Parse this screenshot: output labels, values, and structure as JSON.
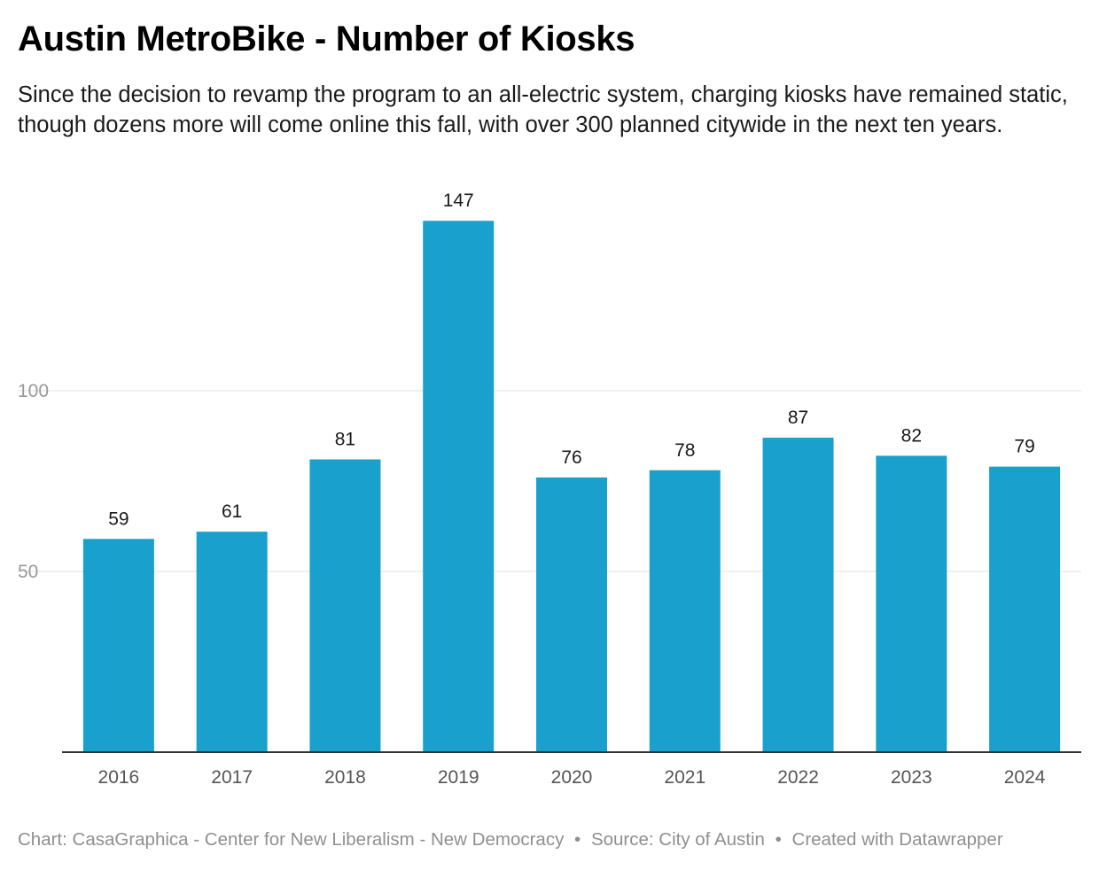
{
  "chart_data": {
    "type": "bar",
    "title": "Austin MetroBike - Number of Kiosks",
    "subtitle": "Since the decision to revamp the program to an all-electric system, charging kiosks have remained static, though dozens more will come online this fall, with over 300 planned citywide in the next ten years.",
    "categories": [
      "2016",
      "2017",
      "2018",
      "2019",
      "2020",
      "2021",
      "2022",
      "2023",
      "2024"
    ],
    "values": [
      59,
      61,
      81,
      147,
      76,
      78,
      87,
      82,
      79
    ],
    "data_labels": [
      "59",
      "61",
      "81",
      "147",
      "76",
      "78",
      "87",
      "82",
      "79"
    ],
    "xlabel": "",
    "ylabel": "",
    "ylim": [
      0,
      150
    ],
    "yticks": [
      50,
      100
    ],
    "ytick_labels": [
      "50",
      "100"
    ],
    "grid": true,
    "legend": "none",
    "bar_color": "#1aa0cc"
  },
  "footer": {
    "chart_credit": "Chart: CasaGraphica - Center for New Liberalism - New Democracy",
    "separator": "•",
    "source": "Source: City of Austin",
    "created_with": "Created with Datawrapper"
  }
}
